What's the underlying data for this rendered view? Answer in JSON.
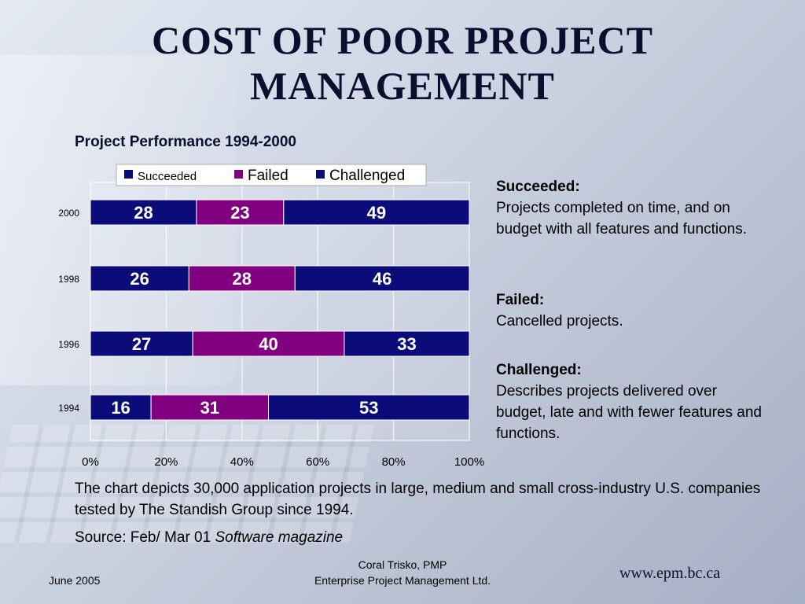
{
  "slide": {
    "title": "COST OF POOR PROJECT MANAGEMENT",
    "note": "The chart depicts 30,000 application projects in large, medium and small cross-industry U.S. companies tested by The Standish Group since 1994.",
    "source_prefix": "Source: Feb/ Mar 01 ",
    "source_italic": "Software magazine"
  },
  "descriptions": [
    {
      "heading": "Succeeded:",
      "text": "Projects completed on time, and on budget with all features and functions."
    },
    {
      "heading": "Failed:",
      "text": "Cancelled projects."
    },
    {
      "heading": "Challenged:",
      "text": "Describes projects delivered over budget, late and with fewer features and functions."
    }
  ],
  "footer": {
    "date": "June 2005",
    "author": "Coral Trisko, PMP",
    "company": "Enterprise Project Management Ltd.",
    "url": "www.epm.bc.ca"
  },
  "colors": {
    "succeeded": "#0b0b7a",
    "failed": "#800080",
    "challenged": "#0b0b7a",
    "title": "#0b0f2e"
  },
  "chart_data": {
    "type": "bar",
    "orientation": "horizontal",
    "stacked": true,
    "title": "Project Performance 1994-2000",
    "categories": [
      "2000",
      "1998",
      "1996",
      "1994"
    ],
    "series": [
      {
        "name": "Succeeded",
        "values": [
          28,
          26,
          27,
          16
        ]
      },
      {
        "name": "Failed",
        "values": [
          23,
          28,
          40,
          31
        ]
      },
      {
        "name": "Challenged",
        "values": [
          49,
          46,
          33,
          53
        ]
      }
    ],
    "xticks": [
      "0%",
      "20%",
      "40%",
      "60%",
      "80%",
      "100%"
    ],
    "xlim": [
      0,
      100
    ],
    "grid": true,
    "legend_position": "top"
  }
}
